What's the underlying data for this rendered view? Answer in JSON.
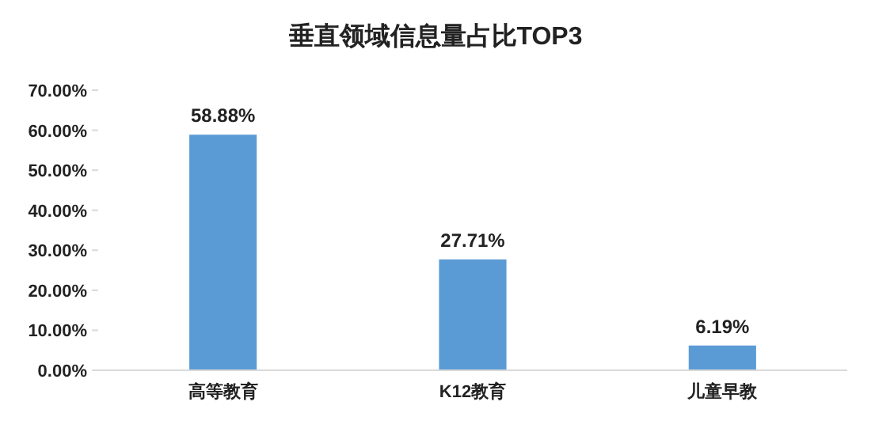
{
  "chart_data": {
    "type": "bar",
    "title": "垂直领域信息量占比TOP3",
    "categories": [
      "高等教育",
      "K12教育",
      "儿童早教"
    ],
    "values": [
      58.88,
      27.71,
      6.19
    ],
    "value_labels": [
      "58.88%",
      "27.71%",
      "6.19%"
    ],
    "color": "#5b9bd5",
    "ylim": [
      0,
      70
    ],
    "yticks": [
      {
        "value": 0,
        "label": "0.00%"
      },
      {
        "value": 10,
        "label": "10.00%"
      },
      {
        "value": 20,
        "label": "20.00%"
      },
      {
        "value": 30,
        "label": "30.00%"
      },
      {
        "value": 40,
        "label": "40.00%"
      },
      {
        "value": 50,
        "label": "50.00%"
      },
      {
        "value": 60,
        "label": "60.00%"
      },
      {
        "value": 70,
        "label": "70.00%"
      }
    ],
    "grid": false
  }
}
